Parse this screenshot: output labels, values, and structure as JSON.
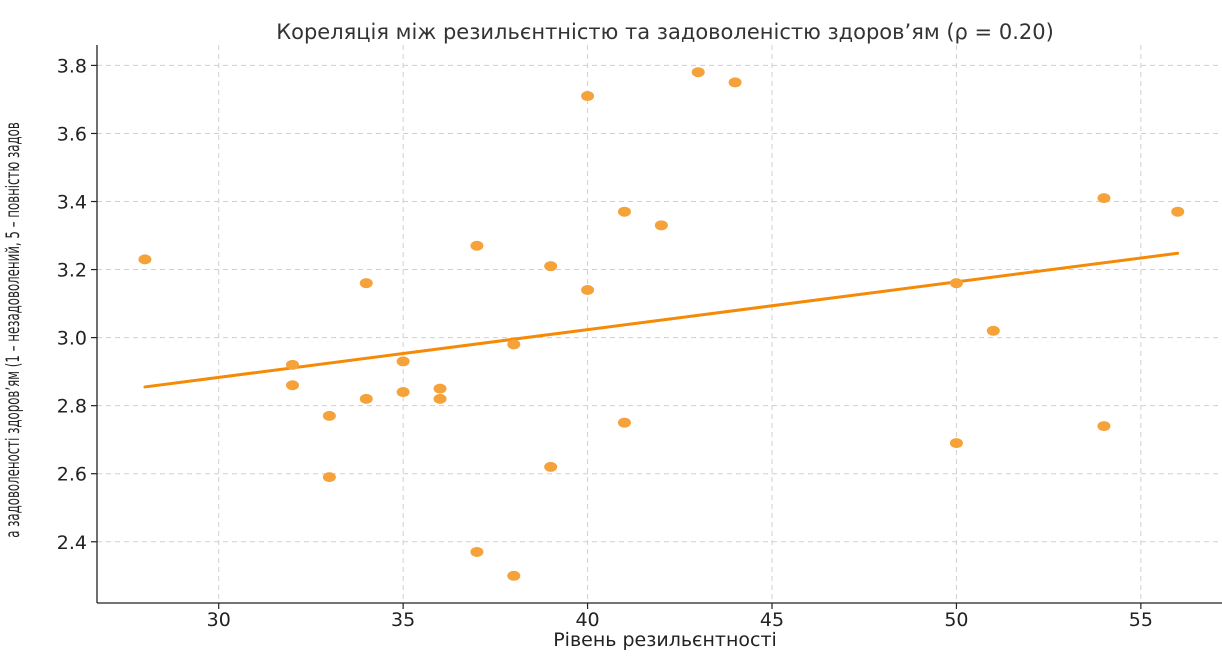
{
  "chart_data": {
    "type": "scatter",
    "title": "Кореляція між резильєнтністю та задоволеністю здоров’ям (ρ = 0.20)",
    "xlabel": "Рівень резильєнтності",
    "ylabel": "а задоволеності здоров’ям (1 – незадоволений, 5 – повністю задов",
    "xlim": [
      26.7,
      57.2
    ],
    "ylim": [
      2.22,
      3.86
    ],
    "xticks": [
      30,
      35,
      40,
      45,
      50,
      55
    ],
    "yticks": [
      2.4,
      2.6,
      2.8,
      3.0,
      3.2,
      3.4,
      3.6,
      3.8
    ],
    "xtick_labels": [
      "30",
      "35",
      "40",
      "45",
      "50",
      "55"
    ],
    "ytick_labels": [
      "2.4",
      "2.6",
      "2.8",
      "3.0",
      "3.2",
      "3.4",
      "3.6",
      "3.8"
    ],
    "grid": true,
    "point_color": "#f5a23a",
    "line_color": "#f58a07",
    "points": [
      {
        "x": 28,
        "y": 3.23
      },
      {
        "x": 32,
        "y": 2.92
      },
      {
        "x": 32,
        "y": 2.86
      },
      {
        "x": 33,
        "y": 2.77
      },
      {
        "x": 33,
        "y": 2.59
      },
      {
        "x": 34,
        "y": 3.16
      },
      {
        "x": 34,
        "y": 2.82
      },
      {
        "x": 35,
        "y": 2.93
      },
      {
        "x": 35,
        "y": 2.84
      },
      {
        "x": 36,
        "y": 2.85
      },
      {
        "x": 36,
        "y": 2.82
      },
      {
        "x": 37,
        "y": 3.27
      },
      {
        "x": 37,
        "y": 2.37
      },
      {
        "x": 38,
        "y": 2.98
      },
      {
        "x": 38,
        "y": 2.3
      },
      {
        "x": 39,
        "y": 3.21
      },
      {
        "x": 39,
        "y": 2.62
      },
      {
        "x": 40,
        "y": 3.71
      },
      {
        "x": 40,
        "y": 3.14
      },
      {
        "x": 41,
        "y": 3.37
      },
      {
        "x": 41,
        "y": 2.75
      },
      {
        "x": 42,
        "y": 3.33
      },
      {
        "x": 43,
        "y": 3.78
      },
      {
        "x": 44,
        "y": 3.75
      },
      {
        "x": 50,
        "y": 3.16
      },
      {
        "x": 50,
        "y": 2.69
      },
      {
        "x": 51,
        "y": 3.02
      },
      {
        "x": 54,
        "y": 3.41
      },
      {
        "x": 54,
        "y": 2.74
      },
      {
        "x": 56,
        "y": 3.37
      }
    ],
    "trend_line": {
      "x": [
        28,
        56
      ],
      "y": [
        2.855,
        3.248
      ]
    }
  }
}
